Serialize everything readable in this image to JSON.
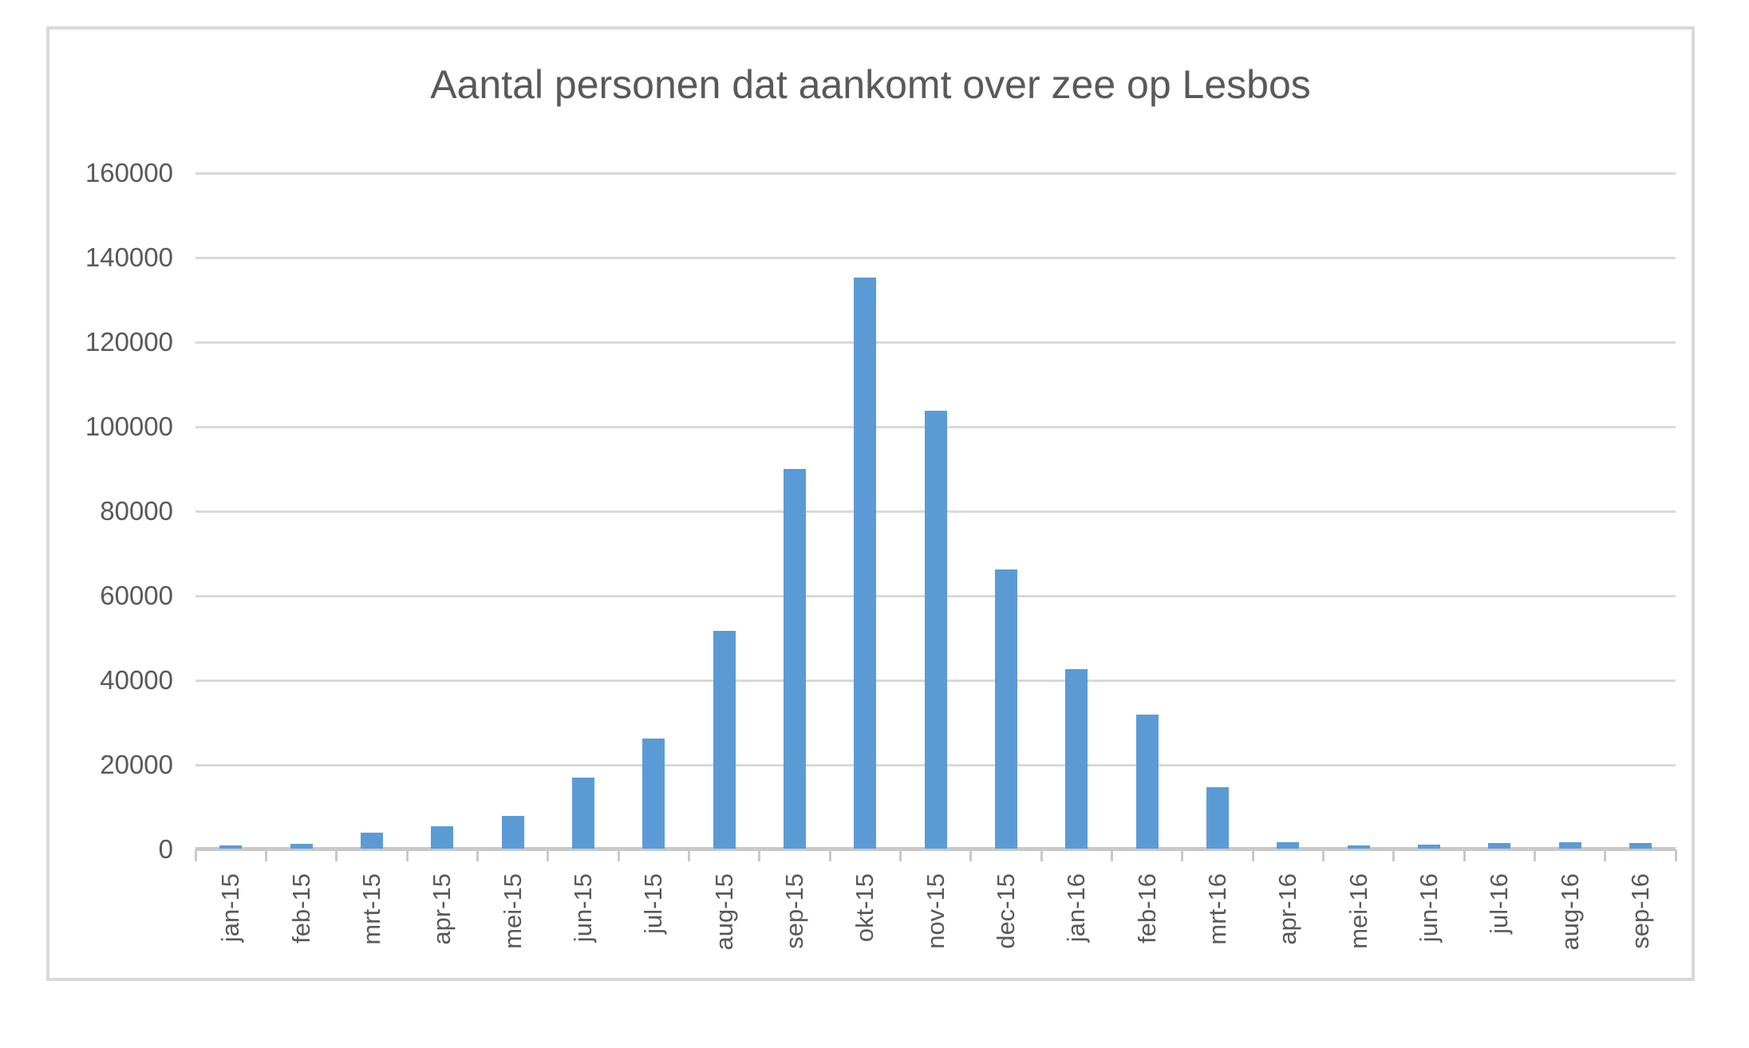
{
  "chart_data": {
    "type": "bar",
    "title": "Aantal personen dat aankomt over zee op Lesbos",
    "categories": [
      "jan-15",
      "feb-15",
      "mrt-15",
      "apr-15",
      "mei-15",
      "jun-15",
      "jul-15",
      "aug-15",
      "sep-15",
      "okt-15",
      "nov-15",
      "dec-15",
      "jan-16",
      "feb-16",
      "mrt-16",
      "apr-16",
      "mei-16",
      "jun-16",
      "jul-16",
      "aug-16",
      "sep-16"
    ],
    "values": [
      750,
      1200,
      3800,
      5300,
      7700,
      16800,
      26000,
      51500,
      89800,
      135000,
      103500,
      66000,
      42500,
      31700,
      14500,
      1450,
      800,
      900,
      1300,
      1450,
      1400
    ],
    "xlabel": "",
    "ylabel": "",
    "ylim": [
      0,
      160000
    ],
    "ytick_step": 20000,
    "ytick_labels": [
      "0",
      "20000",
      "40000",
      "60000",
      "80000",
      "100000",
      "120000",
      "140000",
      "160000"
    ],
    "grid": true,
    "legend": false,
    "bar_color": "#5B9BD5",
    "gridline_color": "#D9D9D9",
    "axis_color": "#C9C9C9",
    "text_color": "#595959",
    "frame_border_color": "#D9D9D9",
    "background": "#FFFFFF"
  }
}
